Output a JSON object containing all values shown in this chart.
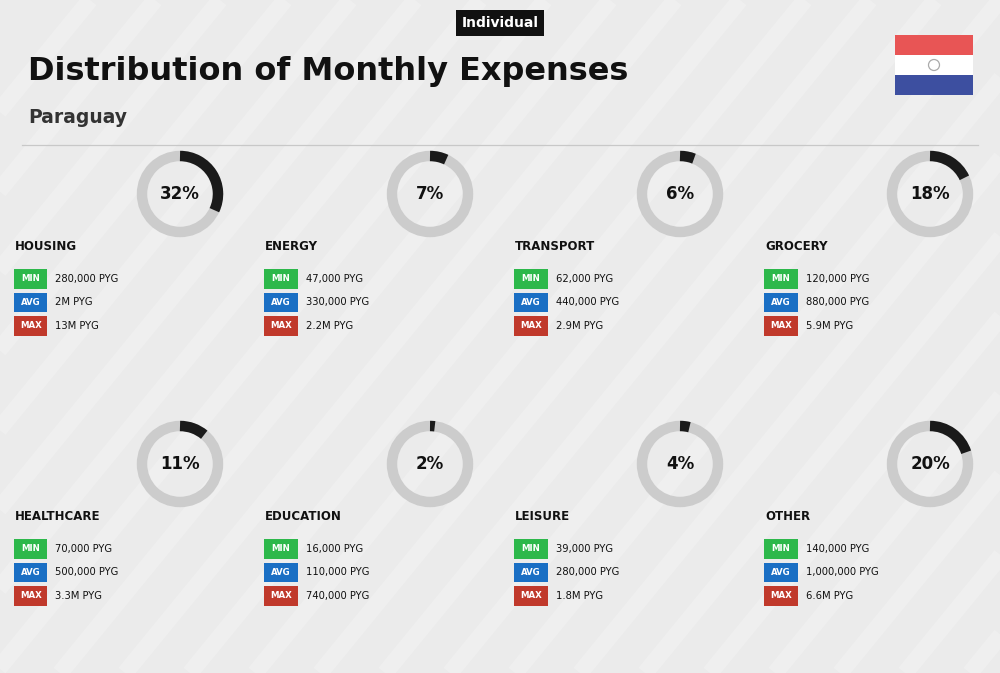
{
  "title": "Distribution of Monthly Expenses",
  "subtitle": "Paraguay",
  "tag": "Individual",
  "bg_color": "#ebebeb",
  "categories": [
    {
      "name": "HOUSING",
      "pct": 32,
      "min": "280,000 PYG",
      "avg": "2M PYG",
      "max": "13M PYG",
      "col": 0,
      "row": 0
    },
    {
      "name": "ENERGY",
      "pct": 7,
      "min": "47,000 PYG",
      "avg": "330,000 PYG",
      "max": "2.2M PYG",
      "col": 1,
      "row": 0
    },
    {
      "name": "TRANSPORT",
      "pct": 6,
      "min": "62,000 PYG",
      "avg": "440,000 PYG",
      "max": "2.9M PYG",
      "col": 2,
      "row": 0
    },
    {
      "name": "GROCERY",
      "pct": 18,
      "min": "120,000 PYG",
      "avg": "880,000 PYG",
      "max": "5.9M PYG",
      "col": 3,
      "row": 0
    },
    {
      "name": "HEALTHCARE",
      "pct": 11,
      "min": "70,000 PYG",
      "avg": "500,000 PYG",
      "max": "3.3M PYG",
      "col": 0,
      "row": 1
    },
    {
      "name": "EDUCATION",
      "pct": 2,
      "min": "16,000 PYG",
      "avg": "110,000 PYG",
      "max": "740,000 PYG",
      "col": 1,
      "row": 1
    },
    {
      "name": "LEISURE",
      "pct": 4,
      "min": "39,000 PYG",
      "avg": "280,000 PYG",
      "max": "1.8M PYG",
      "col": 2,
      "row": 1
    },
    {
      "name": "OTHER",
      "pct": 20,
      "min": "140,000 PYG",
      "avg": "1,000,000 PYG",
      "max": "6.6M PYG",
      "col": 3,
      "row": 1
    }
  ],
  "color_min": "#2db84b",
  "color_avg": "#1a6fc4",
  "color_max": "#c0392b",
  "flag_red": "#e85555",
  "flag_blue": "#3d4fa0",
  "arc_color": "#1a1a1a",
  "arc_bg": "#cccccc",
  "stripe_color": "#ffffff",
  "stripe_alpha": 0.22,
  "sep_color": "#c8c8c8"
}
